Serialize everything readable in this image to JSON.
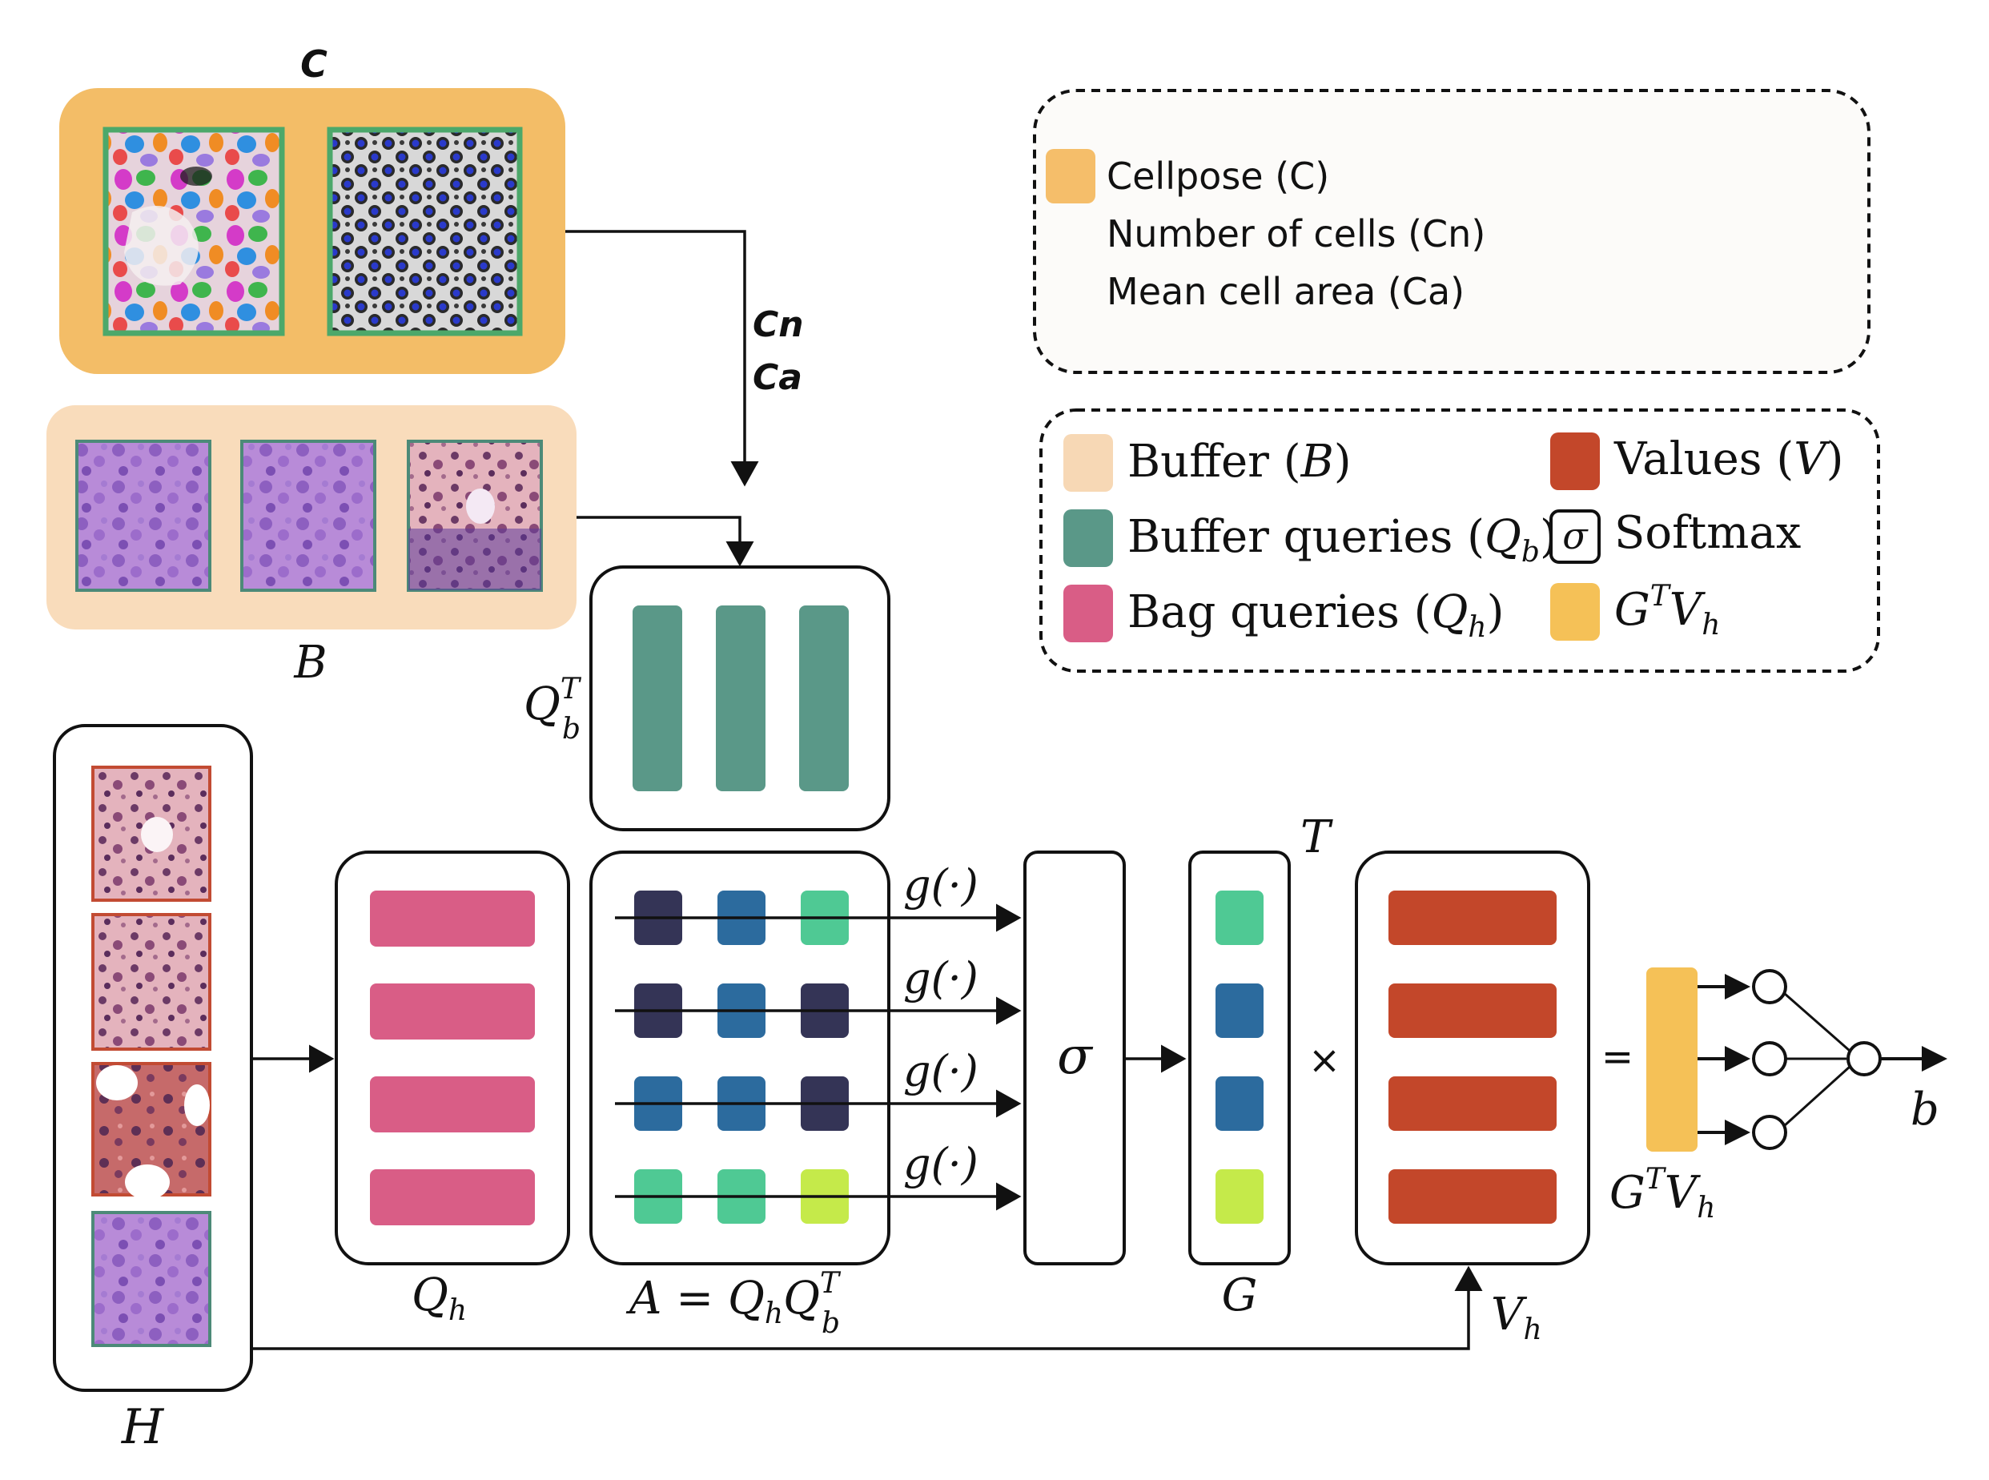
{
  "colors": {
    "cellpose": "#f3bd67",
    "cellpose_legend": "#f5be6a",
    "buffer": "#f9dcbb",
    "buffer_legend": "#f7d8b5",
    "buffer_query": "#5a9888",
    "bag_query": "#d95d86",
    "values": "#c3472a",
    "gtv": "#f5c157",
    "tile_frame": "#4ca86a",
    "dark": "#343456",
    "blue": "#2c6b9e",
    "teal": "#4fc994",
    "lime": "#c5ea4a",
    "stroke": "#111111",
    "legend_box_fill": "#fcfbf9"
  },
  "cellpose": {
    "title": "C",
    "feature_labels": {
      "cn": "Cn",
      "ca": "Ca"
    }
  },
  "buffer": {
    "label": "B"
  },
  "legend_top": {
    "items": [
      {
        "label": "Cellpose (C)",
        "swatch": "cellpose_legend"
      },
      {
        "label": "Number of cells (Cn)",
        "swatch": null
      },
      {
        "label": "Mean cell area (Ca)",
        "swatch": null
      }
    ]
  },
  "legend_bottom": {
    "items": [
      {
        "main": "Buffer (",
        "var": "B",
        "sub": "",
        "tail": ")",
        "swatch": "buffer_legend"
      },
      {
        "main": "Buffer queries (",
        "var": "Q",
        "sub": "b",
        "tail": ")",
        "swatch": "buffer_query"
      },
      {
        "main": "Bag queries (",
        "var": "Q",
        "sub": "h",
        "tail": ")",
        "swatch": "bag_query"
      },
      {
        "main": "Values (",
        "var": "V",
        "sub": "",
        "tail": ")",
        "swatch": "values"
      },
      {
        "main": "Softmax",
        "var": "",
        "sub": "",
        "tail": "",
        "swatch": "sigma"
      },
      {
        "main": "",
        "var": "G",
        "sup": "T",
        "var2": "V",
        "sub": "h",
        "tail": "",
        "swatch": "gtv"
      }
    ]
  },
  "labels": {
    "H": "H",
    "Qh": {
      "v": "Q",
      "sub": "h"
    },
    "QbT": {
      "v": "Q",
      "sup": "T",
      "sub": "b"
    },
    "A": {
      "lhs": "A",
      "eq": " = ",
      "q1": "Q",
      "s1": "h",
      "q2": "Q",
      "sup2": "T",
      "s2": "b"
    },
    "g": "g(·)",
    "sigma": "σ",
    "G": "G",
    "T": "T",
    "times": "×",
    "equals": "=",
    "Vh": {
      "v": "V",
      "sub": "h"
    },
    "GTVh": {
      "g": "G",
      "sup": "T",
      "v": "V",
      "sub": "h"
    },
    "b": "b"
  },
  "attention_matrix": [
    [
      "dark",
      "blue",
      "teal"
    ],
    [
      "dark",
      "blue",
      "dark"
    ],
    [
      "blue",
      "blue",
      "dark"
    ],
    [
      "teal",
      "teal",
      "lime"
    ]
  ],
  "g_vector": [
    "teal",
    "blue",
    "blue",
    "lime"
  ]
}
